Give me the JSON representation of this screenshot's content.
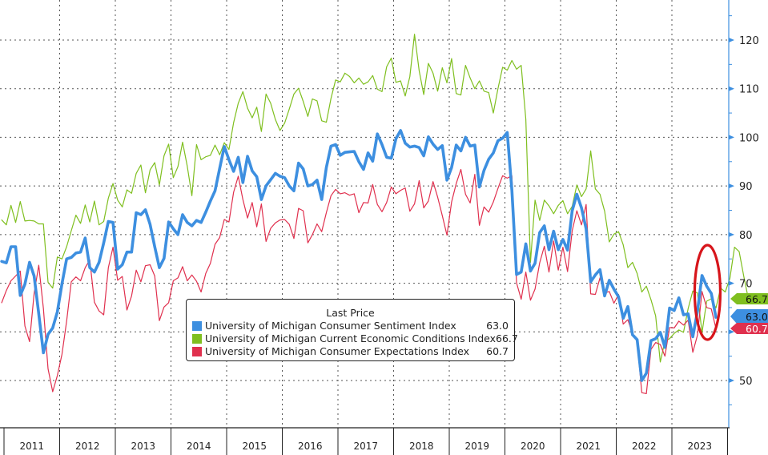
{
  "chart_data": {
    "type": "line",
    "title": "",
    "xlabel": "",
    "ylabel": "",
    "ylim": [
      40,
      128
    ],
    "yticks": [
      50,
      60,
      70,
      80,
      90,
      100,
      110,
      120
    ],
    "ytick_labels": [
      "50",
      "",
      "70",
      "80",
      "90",
      "100",
      "110",
      "120"
    ],
    "x_start": "2010-12",
    "x_end": "2023-09",
    "x_frequency": "monthly",
    "xtick_labels": [
      "2011",
      "2012",
      "2013",
      "2014",
      "2015",
      "2016",
      "2017",
      "2018",
      "2019",
      "2020",
      "2021",
      "2022",
      "2023"
    ],
    "grid": true,
    "legend": {
      "title": "Last Price",
      "position": "bottom-center"
    },
    "annotation": {
      "type": "ellipse",
      "description": "Red ellipse highlighting the latest declines in 2023",
      "color": "#d7151b"
    },
    "series": [
      {
        "name": "University of Michigan Consumer Sentiment Index",
        "color": "#3d8fe0",
        "last_value": "63.0",
        "values": [
          74.5,
          74.2,
          77.5,
          77.5,
          67.5,
          69.8,
          74.3,
          71.5,
          63.7,
          55.7,
          59.5,
          60.8,
          64.1,
          69.9,
          75.0,
          75.3,
          76.2,
          76.4,
          79.3,
          73.2,
          72.3,
          74.3,
          78.3,
          82.7,
          82.5,
          72.9,
          73.8,
          76.4,
          76.4,
          84.5,
          84.1,
          85.1,
          82.1,
          77.5,
          73.2,
          75.1,
          82.6,
          81.2,
          80.0,
          84.1,
          82.5,
          81.8,
          82.9,
          82.5,
          84.6,
          86.9,
          89.0,
          93.6,
          98.1,
          95.4,
          93.0,
          95.9,
          90.7,
          96.1,
          93.1,
          91.9,
          87.2,
          90.0,
          91.3,
          92.6,
          92.0,
          91.7,
          90.0,
          89.0,
          94.7,
          93.5,
          90.0,
          90.3,
          91.2,
          87.2,
          93.8,
          98.2,
          98.5,
          96.3,
          96.9,
          97.0,
          97.1,
          95.0,
          93.4,
          96.8,
          95.1,
          100.7,
          98.5,
          95.9,
          95.7,
          99.7,
          101.4,
          98.8,
          98.0,
          98.2,
          97.9,
          96.2,
          100.1,
          98.6,
          97.5,
          98.3,
          91.2,
          93.8,
          98.4,
          97.2,
          100.0,
          98.2,
          98.4,
          89.8,
          93.2,
          95.5,
          96.8,
          99.3,
          99.8,
          101.0,
          89.1,
          71.8,
          72.3,
          78.1,
          72.5,
          74.1,
          80.4,
          81.8,
          76.9,
          80.7,
          76.9,
          79.0,
          76.8,
          84.9,
          88.3,
          85.5,
          81.2,
          70.3,
          71.7,
          72.8,
          67.4,
          70.6,
          68.8,
          67.2,
          62.8,
          65.2,
          59.4,
          58.4,
          50.0,
          51.5,
          58.2,
          58.6,
          59.9,
          56.8,
          64.9,
          64.4,
          67.0,
          63.5,
          63.7,
          59.0,
          64.2,
          71.6,
          69.4,
          67.9,
          63.0
        ]
      },
      {
        "name": "University of Michigan Current Economic Conditions Index",
        "color": "#7fbf1f",
        "last_value": "66.7",
        "values": [
          83.0,
          82.0,
          86.0,
          82.5,
          86.8,
          82.8,
          82.9,
          82.8,
          82.2,
          82.2,
          70.2,
          69.0,
          75.4,
          75.0,
          77.5,
          80.8,
          84.0,
          82.3,
          86.1,
          82.6,
          86.9,
          82.0,
          82.7,
          87.5,
          90.5,
          87.1,
          85.7,
          89.2,
          88.5,
          92.6,
          94.3,
          88.6,
          93.3,
          94.8,
          90.2,
          96.2,
          98.6,
          91.7,
          94.0,
          99.0,
          94.1,
          88.0,
          98.5,
          95.4,
          96.0,
          96.3,
          98.4,
          96.4,
          98.9,
          97.5,
          103.0,
          107.0,
          109.4,
          106.0,
          104.0,
          106.2,
          101.2,
          108.9,
          107.0,
          103.7,
          101.4,
          102.9,
          105.8,
          108.9,
          110.1,
          107.4,
          104.3,
          107.9,
          107.5,
          103.4,
          103.1,
          108.0,
          111.8,
          111.4,
          113.2,
          112.5,
          111.2,
          112.2,
          110.9,
          111.4,
          112.7,
          109.9,
          109.4,
          114.5,
          116.3,
          111.3,
          111.6,
          108.5,
          112.5,
          121.2,
          113.7,
          108.8,
          115.2,
          113.2,
          109.5,
          114.3,
          111.2,
          116.2,
          109.0,
          108.7,
          114.8,
          112.2,
          110.0,
          111.6,
          109.5,
          109.2,
          105.0,
          110.0,
          114.4,
          113.8,
          115.8,
          114.0,
          114.8,
          103.7,
          74.3,
          87.1,
          82.9,
          87.1,
          85.9,
          84.3,
          86.0,
          87.0,
          84.3,
          85.8,
          90.2,
          87.8,
          89.4,
          97.2,
          89.4,
          88.3,
          84.8,
          78.5,
          80.1,
          80.6,
          77.9,
          73.2,
          74.3,
          72.0,
          68.2,
          69.4,
          66.6,
          63.3,
          53.8,
          58.1,
          58.6,
          59.7,
          60.4,
          59.9,
          64.8,
          68.4,
          68.0,
          59.8,
          66.3,
          66.8,
          64.9,
          69.0,
          68.2,
          71.0,
          77.4,
          76.5,
          71.4,
          66.7
        ]
      },
      {
        "name": "University of Michigan Consumer Expectations Index",
        "color": "#e0304e",
        "last_value": "60.7",
        "values": [
          66.0,
          68.5,
          70.5,
          71.5,
          72.5,
          61.2,
          58.0,
          67.9,
          73.7,
          64.8,
          52.4,
          47.7,
          51.0,
          55.4,
          62.2,
          70.3,
          71.3,
          70.5,
          73.2,
          74.8,
          66.1,
          64.3,
          63.5,
          73.2,
          77.4,
          70.6,
          71.4,
          64.5,
          67.4,
          72.7,
          70.3,
          73.6,
          73.8,
          71.5,
          62.3,
          65.1,
          66.0,
          70.5,
          71.1,
          73.4,
          70.5,
          71.7,
          70.4,
          68.2,
          72.0,
          74.1,
          78.0,
          79.4,
          83.1,
          82.6,
          88.7,
          92.0,
          87.2,
          83.4,
          86.6,
          81.6,
          86.3,
          78.6,
          81.3,
          82.4,
          83.0,
          83.1,
          82.1,
          79.2,
          85.4,
          84.9,
          78.3,
          80.0,
          82.2,
          80.6,
          84.5,
          88.0,
          89.3,
          88.4,
          88.6,
          88.1,
          88.4,
          84.5,
          86.6,
          86.5,
          90.3,
          86.2,
          84.7,
          86.6,
          89.8,
          88.4,
          89.1,
          89.6,
          84.8,
          86.3,
          91.1,
          85.5,
          86.9,
          90.9,
          87.7,
          83.9,
          79.9,
          86.7,
          90.5,
          93.4,
          88.3,
          86.5,
          92.4,
          81.9,
          85.7,
          84.6,
          86.7,
          89.5,
          92.1,
          91.6,
          92.1,
          70.1,
          66.7,
          72.3,
          66.5,
          68.8,
          74.2,
          77.6,
          72.3,
          78.7,
          72.7,
          77.4,
          72.4,
          80.8,
          84.9,
          82.0,
          86.2,
          67.8,
          67.7,
          71.1,
          68.0,
          68.3,
          65.9,
          67.7,
          61.6,
          62.5,
          59.6,
          58.0,
          47.5,
          47.3,
          56.4,
          57.8,
          57.4,
          55.0,
          60.9,
          60.8,
          62.2,
          61.4,
          62.4,
          55.8,
          59.3,
          68.3,
          65.0,
          64.7,
          60.7
        ]
      }
    ]
  },
  "axis_badges": [
    {
      "label": "66.7",
      "series": 1
    },
    {
      "label": "63.0",
      "series": 0
    },
    {
      "label": "60.7",
      "series": 2
    }
  ]
}
